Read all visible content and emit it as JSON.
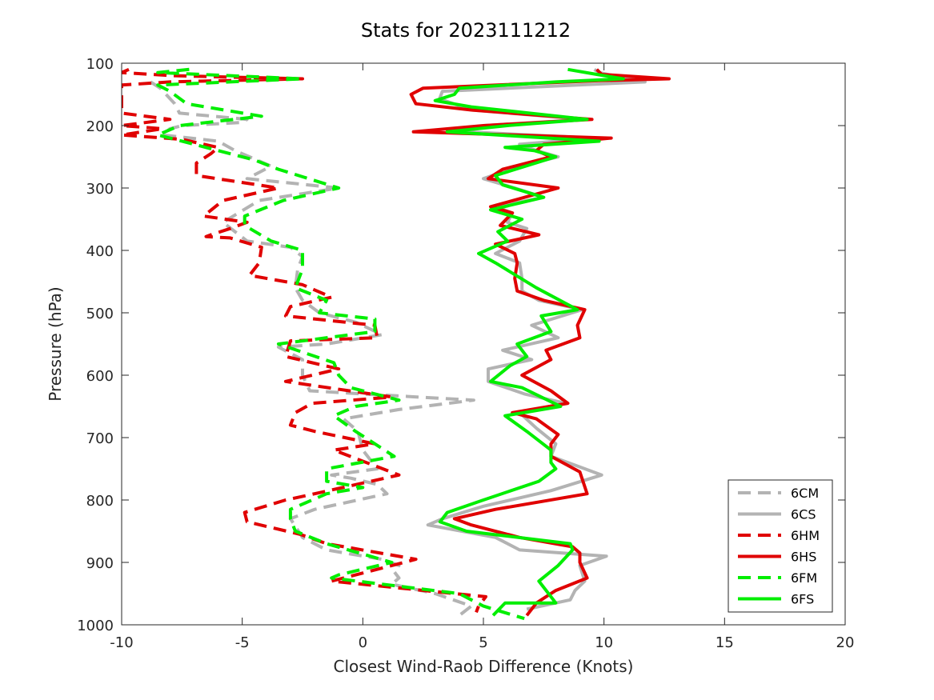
{
  "chart_data": {
    "type": "line",
    "title": "Stats for 2023111212",
    "xlabel": "Closest Wind-Raob Difference (Knots)",
    "ylabel": "Pressure (hPa)",
    "xlim": [
      -10,
      20
    ],
    "ylim": [
      100,
      1000
    ],
    "y_reversed": true,
    "xticks": [
      -10,
      -5,
      0,
      5,
      10,
      15,
      20
    ],
    "yticks": [
      100,
      200,
      300,
      400,
      500,
      600,
      700,
      800,
      900,
      1000
    ],
    "grid": false,
    "legend_position": "bottom-right",
    "series": [
      {
        "name": "6CM",
        "color": "#b3b3b3",
        "dash": "dashed",
        "points": [
          [
            -8.8,
            130
          ],
          [
            -8.4,
            140
          ],
          [
            -7.8,
            165
          ],
          [
            -7.6,
            180
          ],
          [
            -4.8,
            190
          ],
          [
            -5,
            195
          ],
          [
            -7.5,
            200
          ],
          [
            -8,
            205
          ],
          [
            -8.3,
            215
          ],
          [
            -6,
            225
          ],
          [
            -5.3,
            240
          ],
          [
            -3.8,
            265
          ],
          [
            -4.8,
            285
          ],
          [
            -1,
            300
          ],
          [
            -4.3,
            320
          ],
          [
            -5.8,
            355
          ],
          [
            -4.8,
            385
          ],
          [
            -3,
            395
          ],
          [
            -2.5,
            410
          ],
          [
            -2.7,
            430
          ],
          [
            -2.8,
            460
          ],
          [
            -2.5,
            480
          ],
          [
            -1.8,
            500
          ],
          [
            -0.3,
            515
          ],
          [
            0.8,
            535
          ],
          [
            -1.5,
            550
          ],
          [
            -3.5,
            555
          ],
          [
            -2.5,
            575
          ],
          [
            -2.5,
            600
          ],
          [
            -2.2,
            625
          ],
          [
            0,
            630
          ],
          [
            4.6,
            640
          ],
          [
            1.5,
            655
          ],
          [
            -0.8,
            670
          ],
          [
            -0.2,
            690
          ],
          [
            0,
            720
          ],
          [
            0.6,
            750
          ],
          [
            -1.3,
            760
          ],
          [
            -0.5,
            765
          ],
          [
            0.6,
            775
          ],
          [
            1,
            790
          ],
          [
            -0.8,
            805
          ],
          [
            -2,
            815
          ],
          [
            -3,
            830
          ],
          [
            -2.5,
            860
          ],
          [
            -1.5,
            880
          ],
          [
            0.8,
            895
          ],
          [
            1.5,
            905
          ],
          [
            1.3,
            915
          ],
          [
            1.5,
            925
          ],
          [
            1.2,
            935
          ],
          [
            3,
            950
          ],
          [
            4.5,
            970
          ],
          [
            4,
            985
          ]
        ]
      },
      {
        "name": "6CS",
        "color": "#b3b3b3",
        "dash": "solid",
        "points": [
          [
            9.6,
            110
          ],
          [
            9.8,
            115
          ],
          [
            11,
            125
          ],
          [
            11.7,
            130
          ],
          [
            3.3,
            145
          ],
          [
            3.2,
            155
          ],
          [
            3.4,
            160
          ],
          [
            4.5,
            175
          ],
          [
            9.2,
            190
          ],
          [
            5,
            200
          ],
          [
            4.3,
            210
          ],
          [
            9.6,
            220
          ],
          [
            6.5,
            230
          ],
          [
            7.2,
            240
          ],
          [
            8.1,
            250
          ],
          [
            6.5,
            265
          ],
          [
            5,
            285
          ],
          [
            6.3,
            300
          ],
          [
            7.5,
            315
          ],
          [
            5.5,
            330
          ],
          [
            6.2,
            340
          ],
          [
            6,
            355
          ],
          [
            6.8,
            365
          ],
          [
            6.5,
            385
          ],
          [
            5.5,
            405
          ],
          [
            6.5,
            420
          ],
          [
            6.6,
            445
          ],
          [
            6.6,
            465
          ],
          [
            7.3,
            480
          ],
          [
            9.1,
            495
          ],
          [
            7,
            520
          ],
          [
            8.1,
            540
          ],
          [
            5.8,
            560
          ],
          [
            7,
            575
          ],
          [
            5.2,
            590
          ],
          [
            5.2,
            610
          ],
          [
            6.7,
            630
          ],
          [
            8.4,
            645
          ],
          [
            6.5,
            660
          ],
          [
            7.2,
            685
          ],
          [
            8,
            710
          ],
          [
            7.8,
            730
          ],
          [
            9.9,
            760
          ],
          [
            7.8,
            785
          ],
          [
            5,
            810
          ],
          [
            3.3,
            830
          ],
          [
            2.7,
            840
          ],
          [
            5.5,
            860
          ],
          [
            6.5,
            880
          ],
          [
            10.1,
            890
          ],
          [
            9,
            905
          ],
          [
            9.2,
            930
          ],
          [
            8.8,
            945
          ],
          [
            8.6,
            960
          ],
          [
            6.8,
            975
          ]
        ]
      },
      {
        "name": "6HM",
        "color": "#e00000",
        "dash": "dashed",
        "points": [
          [
            -9.7,
            110
          ],
          [
            -10,
            115
          ],
          [
            -7.9,
            120
          ],
          [
            -2.5,
            125
          ],
          [
            -8,
            130
          ],
          [
            -10,
            135
          ],
          [
            -10,
            180
          ],
          [
            -8,
            190
          ],
          [
            -10,
            200
          ],
          [
            -8.3,
            205
          ],
          [
            -10,
            215
          ],
          [
            -7.5,
            222
          ],
          [
            -6,
            235
          ],
          [
            -6.3,
            245
          ],
          [
            -6.9,
            260
          ],
          [
            -6.9,
            280
          ],
          [
            -3.5,
            300
          ],
          [
            -5.8,
            320
          ],
          [
            -6.6,
            345
          ],
          [
            -4.8,
            355
          ],
          [
            -5.5,
            365
          ],
          [
            -6.3,
            375
          ],
          [
            -6.5,
            378
          ],
          [
            -5.5,
            380
          ],
          [
            -4.2,
            395
          ],
          [
            -4.3,
            420
          ],
          [
            -4.7,
            440
          ],
          [
            -2.5,
            455
          ],
          [
            -1.3,
            475
          ],
          [
            -3,
            490
          ],
          [
            -3.2,
            505
          ],
          [
            0.5,
            520
          ],
          [
            0.6,
            540
          ],
          [
            -3,
            545
          ],
          [
            -3.2,
            570
          ],
          [
            -1,
            590
          ],
          [
            -3.2,
            610
          ],
          [
            1.2,
            635
          ],
          [
            -2.1,
            645
          ],
          [
            -2.8,
            660
          ],
          [
            -3,
            680
          ],
          [
            -2,
            690
          ],
          [
            0.5,
            710
          ],
          [
            -1.2,
            720
          ],
          [
            1.5,
            760
          ],
          [
            -2,
            790
          ],
          [
            -3.2,
            800
          ],
          [
            -4.9,
            820
          ],
          [
            -4.8,
            835
          ],
          [
            -2.6,
            855
          ],
          [
            -1.5,
            870
          ],
          [
            2.2,
            895
          ],
          [
            -1.3,
            930
          ],
          [
            5.1,
            955
          ],
          [
            4.8,
            970
          ],
          [
            4.7,
            980
          ]
        ]
      },
      {
        "name": "6HS",
        "color": "#e00000",
        "dash": "solid",
        "points": [
          [
            9.7,
            110
          ],
          [
            9.9,
            118
          ],
          [
            12.7,
            125
          ],
          [
            9.8,
            128
          ],
          [
            2.5,
            140
          ],
          [
            2,
            150
          ],
          [
            2.2,
            165
          ],
          [
            4.5,
            175
          ],
          [
            9.5,
            190
          ],
          [
            5,
            200
          ],
          [
            2.1,
            210
          ],
          [
            10.3,
            220
          ],
          [
            7.5,
            230
          ],
          [
            7.2,
            240
          ],
          [
            7.8,
            250
          ],
          [
            5.8,
            270
          ],
          [
            5.2,
            285
          ],
          [
            8.1,
            300
          ],
          [
            5.3,
            330
          ],
          [
            6.2,
            340
          ],
          [
            5.7,
            360
          ],
          [
            7.3,
            375
          ],
          [
            5.5,
            390
          ],
          [
            6.3,
            405
          ],
          [
            6.4,
            420
          ],
          [
            6.3,
            445
          ],
          [
            6.4,
            465
          ],
          [
            7.5,
            480
          ],
          [
            9.2,
            495
          ],
          [
            8.9,
            520
          ],
          [
            9,
            540
          ],
          [
            7.6,
            560
          ],
          [
            7.8,
            575
          ],
          [
            6.6,
            600
          ],
          [
            7.8,
            625
          ],
          [
            8.5,
            645
          ],
          [
            6.2,
            660
          ],
          [
            7.2,
            670
          ],
          [
            8.1,
            695
          ],
          [
            7.8,
            710
          ],
          [
            7.8,
            730
          ],
          [
            9,
            755
          ],
          [
            9.3,
            790
          ],
          [
            5.5,
            815
          ],
          [
            3.8,
            830
          ],
          [
            4.5,
            840
          ],
          [
            6.5,
            860
          ],
          [
            8.7,
            875
          ],
          [
            9,
            885
          ],
          [
            9,
            900
          ],
          [
            9.3,
            925
          ],
          [
            8,
            945
          ],
          [
            7.2,
            965
          ],
          [
            6.8,
            985
          ]
        ]
      },
      {
        "name": "6FM",
        "color": "#00ee00",
        "dash": "dashed",
        "points": [
          [
            -7.2,
            110
          ],
          [
            -8.5,
            115
          ],
          [
            -2.5,
            125
          ],
          [
            -8.5,
            135
          ],
          [
            -8,
            145
          ],
          [
            -7.3,
            165
          ],
          [
            -4.2,
            185
          ],
          [
            -7.6,
            200
          ],
          [
            -8.5,
            215
          ],
          [
            -7,
            230
          ],
          [
            -4.5,
            255
          ],
          [
            -3.5,
            270
          ],
          [
            -1,
            300
          ],
          [
            -3.3,
            320
          ],
          [
            -4.9,
            345
          ],
          [
            -4.9,
            360
          ],
          [
            -3.8,
            385
          ],
          [
            -2.5,
            400
          ],
          [
            -2.5,
            430
          ],
          [
            -2.8,
            460
          ],
          [
            -1.5,
            480
          ],
          [
            -1.8,
            500
          ],
          [
            0.5,
            510
          ],
          [
            0.5,
            530
          ],
          [
            -3.5,
            550
          ],
          [
            -1.2,
            580
          ],
          [
            -1,
            600
          ],
          [
            -0.5,
            620
          ],
          [
            1.5,
            640
          ],
          [
            -0.3,
            650
          ],
          [
            -1.2,
            665
          ],
          [
            -0.3,
            690
          ],
          [
            0.5,
            710
          ],
          [
            1.3,
            730
          ],
          [
            -1.5,
            750
          ],
          [
            -1.5,
            770
          ],
          [
            0,
            780
          ],
          [
            -1.5,
            790
          ],
          [
            -3,
            815
          ],
          [
            -3,
            830
          ],
          [
            -2.8,
            850
          ],
          [
            -1.5,
            870
          ],
          [
            1.2,
            900
          ],
          [
            -1,
            920
          ],
          [
            -1.3,
            925
          ],
          [
            4,
            950
          ],
          [
            5,
            970
          ],
          [
            6.7,
            990
          ]
        ]
      },
      {
        "name": "6FS",
        "color": "#00ee00",
        "dash": "solid",
        "points": [
          [
            8.5,
            110
          ],
          [
            9.7,
            118
          ],
          [
            10.8,
            125
          ],
          [
            8,
            130
          ],
          [
            4,
            140
          ],
          [
            3.8,
            150
          ],
          [
            3,
            160
          ],
          [
            4.5,
            170
          ],
          [
            9.3,
            190
          ],
          [
            6,
            200
          ],
          [
            3.5,
            210
          ],
          [
            9.8,
            225
          ],
          [
            5.9,
            235
          ],
          [
            7.1,
            240
          ],
          [
            8,
            250
          ],
          [
            5.5,
            280
          ],
          [
            5.8,
            295
          ],
          [
            7.5,
            315
          ],
          [
            5.3,
            335
          ],
          [
            6.6,
            350
          ],
          [
            5.6,
            370
          ],
          [
            6,
            385
          ],
          [
            4.8,
            405
          ],
          [
            5.5,
            420
          ],
          [
            7.2,
            460
          ],
          [
            8.9,
            495
          ],
          [
            7.4,
            505
          ],
          [
            7.8,
            530
          ],
          [
            6.4,
            550
          ],
          [
            6.8,
            570
          ],
          [
            6.1,
            585
          ],
          [
            5.3,
            610
          ],
          [
            6.6,
            620
          ],
          [
            8.2,
            650
          ],
          [
            5.9,
            665
          ],
          [
            6.8,
            690
          ],
          [
            7.8,
            720
          ],
          [
            7.8,
            740
          ],
          [
            8,
            750
          ],
          [
            7.3,
            770
          ],
          [
            5,
            800
          ],
          [
            3.5,
            820
          ],
          [
            3.2,
            835
          ],
          [
            4.3,
            850
          ],
          [
            8.6,
            870
          ],
          [
            8.7,
            880
          ],
          [
            8.1,
            905
          ],
          [
            7.3,
            930
          ],
          [
            7.7,
            950
          ],
          [
            8,
            965
          ],
          [
            5.9,
            965
          ],
          [
            5.4,
            985
          ]
        ]
      }
    ]
  }
}
